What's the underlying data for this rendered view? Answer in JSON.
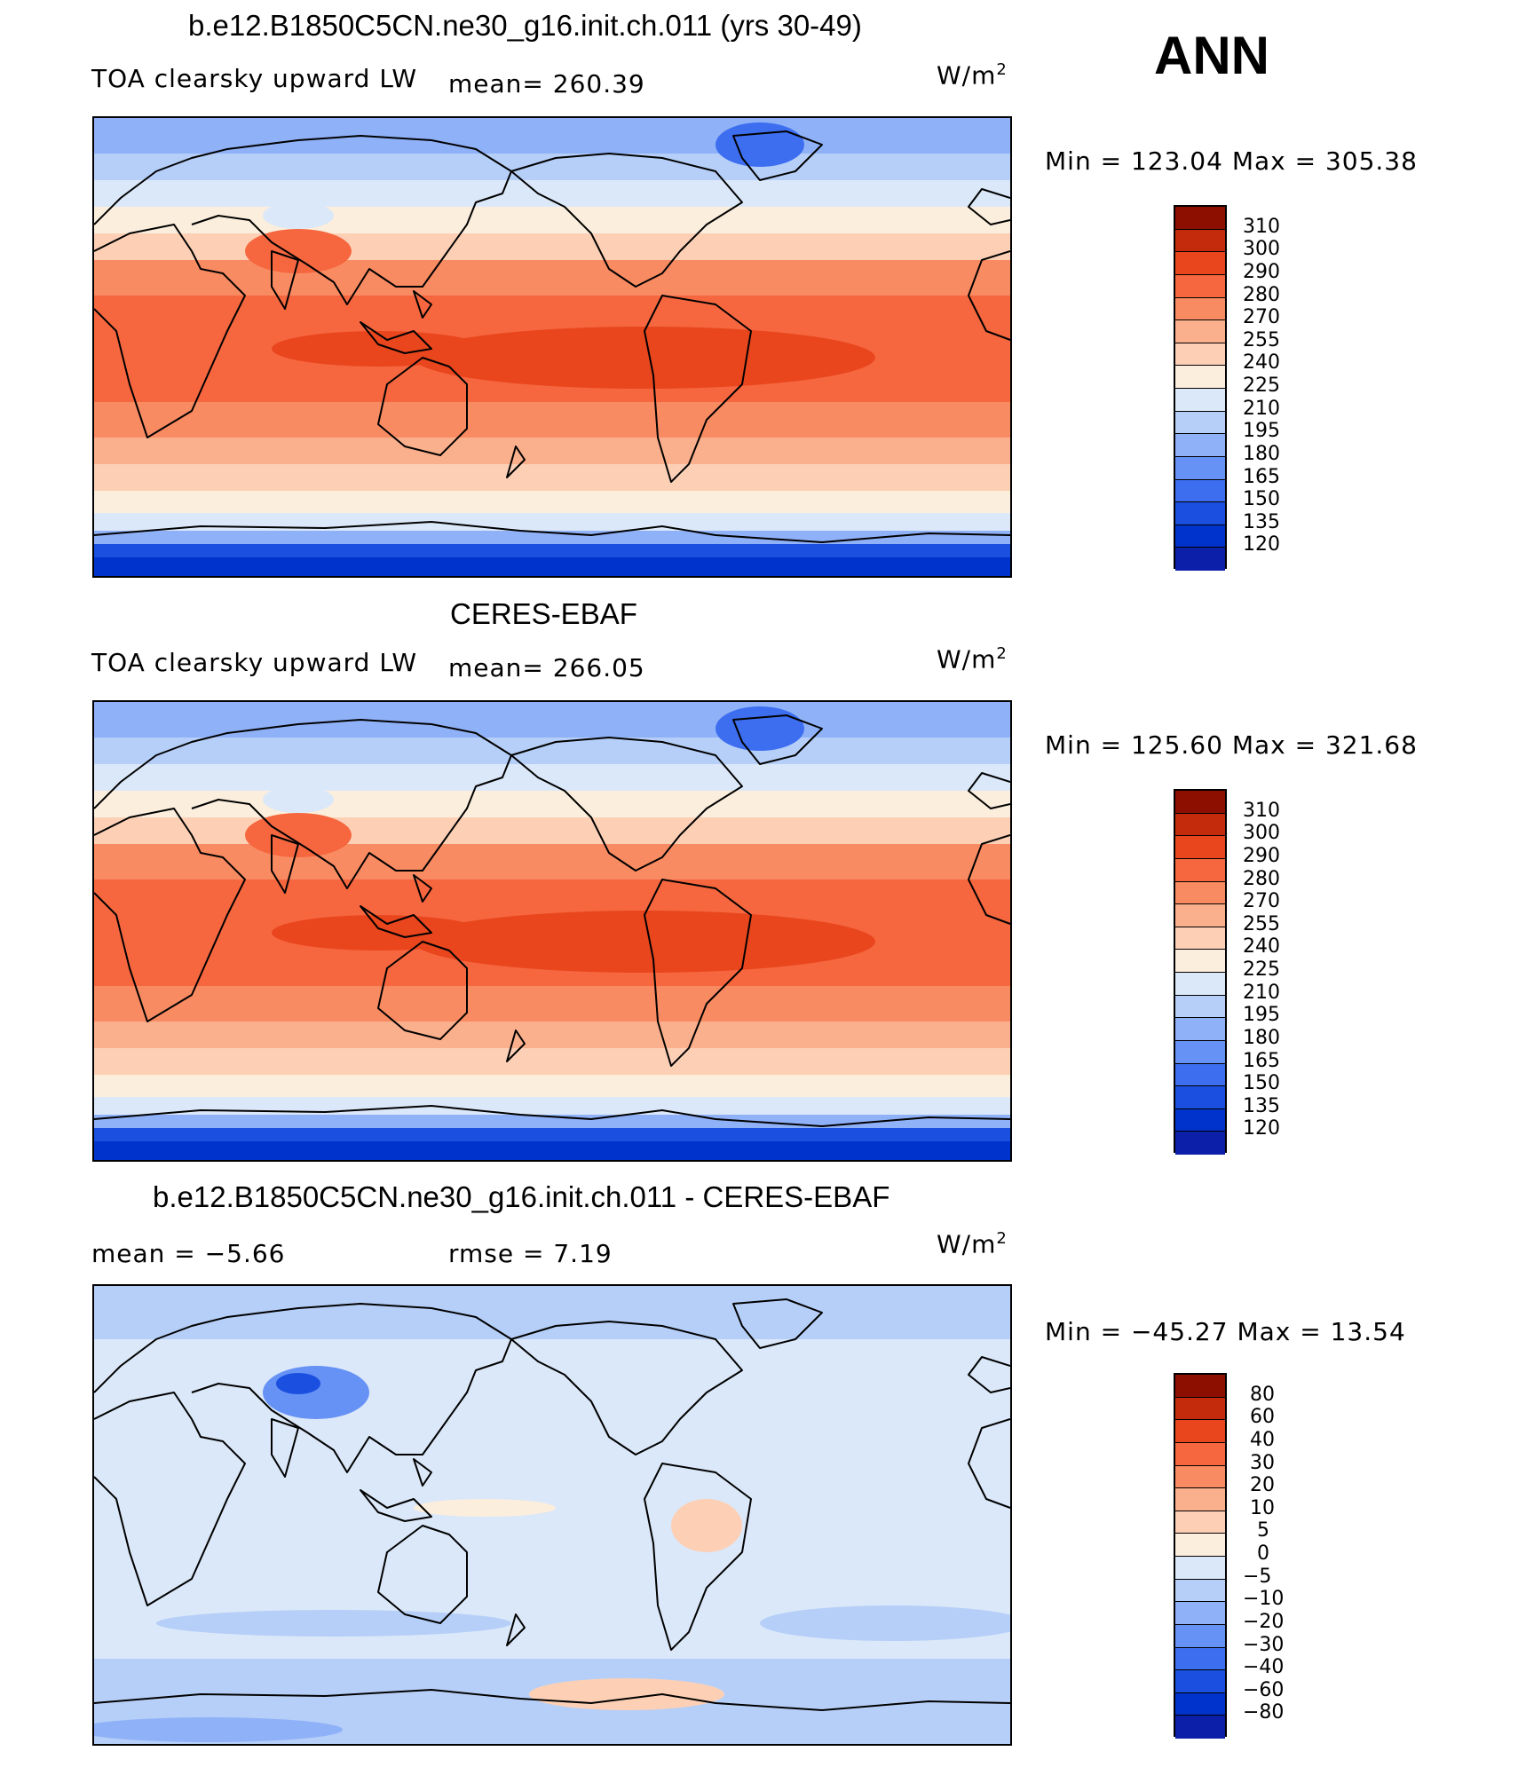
{
  "season": "ANN",
  "panels": [
    {
      "id": "model",
      "title": "b.e12.B1850C5CN.ne30_g16.init.ch.011 (yrs 30-49)",
      "left_label": "TOA clearsky upward LW",
      "center_label": "mean= 260.39",
      "unit_base": "W/m",
      "unit_sup": "2",
      "minmax": "Min  =  123.04  Max  =  305.38",
      "scale": "abs",
      "colorbar_labels": [
        "310",
        "300",
        "290",
        "280",
        "270",
        "255",
        "240",
        "225",
        "210",
        "195",
        "180",
        "165",
        "150",
        "135",
        "120"
      ]
    },
    {
      "id": "obs",
      "title": "CERES-EBAF",
      "left_label": "TOA clearsky upward LW",
      "center_label": "mean= 266.05",
      "unit_base": "W/m",
      "unit_sup": "2",
      "minmax": "Min  =  125.60  Max  =  321.68",
      "scale": "abs",
      "colorbar_labels": [
        "310",
        "300",
        "290",
        "280",
        "270",
        "255",
        "240",
        "225",
        "210",
        "195",
        "180",
        "165",
        "150",
        "135",
        "120"
      ]
    },
    {
      "id": "diff",
      "title": "b.e12.B1850C5CN.ne30_g16.init.ch.011 - CERES-EBAF",
      "left_label": "mean =    −5.66",
      "center_label": "rmse =     7.19",
      "unit_base": "W/m",
      "unit_sup": "2",
      "minmax": "Min  =  −45.27  Max  =    13.54",
      "scale": "diff",
      "colorbar_labels": [
        "80",
        "60",
        "40",
        "30",
        "20",
        "10",
        "5",
        "0",
        "−5",
        "−10",
        "−20",
        "−30",
        "−40",
        "−60",
        "−80"
      ]
    }
  ],
  "colors": {
    "abs_scale": [
      "#000080",
      "#0b1fa8",
      "#0033cc",
      "#1a4fe0",
      "#3d6ef0",
      "#6691f5",
      "#8fb1f7",
      "#b6cff8",
      "#dbe8f9",
      "#fbeedd",
      "#fdd0b6",
      "#fbb08d",
      "#f98b62",
      "#f6673f",
      "#e9461e",
      "#c42a0c",
      "#8c0f00"
    ],
    "diff_scale": [
      "#000080",
      "#0b1fa8",
      "#0033cc",
      "#1a4fe0",
      "#3d6ef0",
      "#6691f5",
      "#8fb1f7",
      "#b6cff8",
      "#dbe8f9",
      "#fbeedd",
      "#fdd0b6",
      "#fbb08d",
      "#f98b62",
      "#f6673f",
      "#e9461e",
      "#c42a0c",
      "#8c0f00"
    ]
  }
}
